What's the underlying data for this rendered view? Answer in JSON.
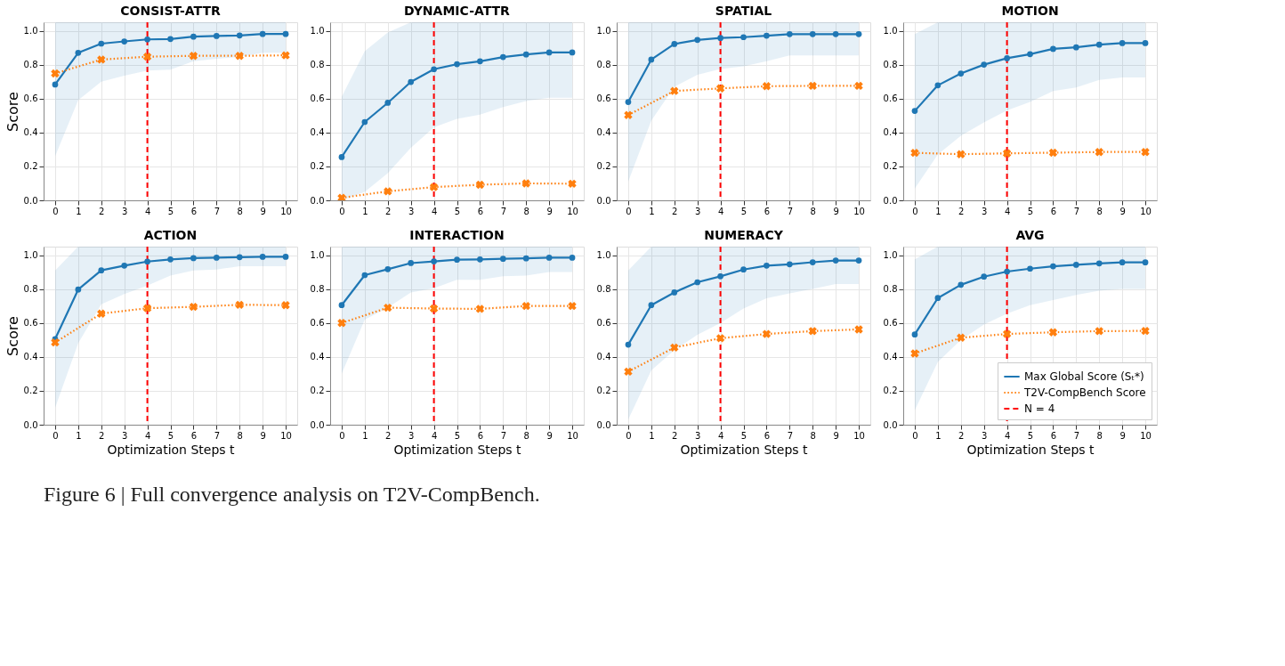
{
  "chart_data": [
    {
      "type": "line",
      "title": "CONSIST-ATTR",
      "ylabel": "Score",
      "xlim": [
        -0.5,
        10.5
      ],
      "xticks": [
        0,
        1,
        2,
        3,
        4,
        5,
        6,
        7,
        8,
        9,
        10
      ],
      "ylim": [
        0,
        1.05
      ],
      "yticks": [
        {
          "value": 0,
          "label": "0.0"
        },
        {
          "value": 0.2,
          "label": "0.2"
        },
        {
          "value": 0.4,
          "label": "0.4"
        },
        {
          "value": 0.6,
          "label": "0.6"
        },
        {
          "value": 0.8,
          "label": "0.8"
        },
        {
          "value": 1,
          "label": "1.0"
        }
      ],
      "grid": true,
      "legend": false,
      "series": [
        {
          "color": "#1f77b4",
          "marker": "circle",
          "line_style": "solid",
          "x": [
            0,
            1,
            2,
            3,
            4,
            5,
            6,
            7,
            8,
            9,
            10
          ],
          "values": [
            0.683,
            0.87,
            0.924,
            0.937,
            0.949,
            0.951,
            0.965,
            0.969,
            0.972,
            0.981,
            0.981
          ],
          "lower": [
            0.26,
            0.59,
            0.7,
            0.735,
            0.765,
            0.77,
            0.82,
            0.835,
            0.845,
            0.87,
            0.87
          ],
          "upper": [
            1.05,
            1.05,
            1.05,
            1.05,
            1.05,
            1.05,
            1.05,
            1.05,
            1.05,
            1.05,
            1.05
          ]
        },
        {
          "color": "#ff7f0e",
          "marker": "cross",
          "line_style": "dotted",
          "x": [
            0,
            2,
            4,
            6,
            8,
            10
          ],
          "values": [
            0.748,
            0.83,
            0.847,
            0.852,
            0.852,
            0.855
          ]
        }
      ],
      "ref_lines": [
        {
          "axis": "x",
          "value": 4,
          "color": "#ff0000",
          "line_style": "dashed"
        }
      ]
    },
    {
      "type": "line",
      "title": "DYNAMIC-ATTR",
      "xlim": [
        -0.5,
        10.5
      ],
      "xticks": [
        0,
        1,
        2,
        3,
        4,
        5,
        6,
        7,
        8,
        9,
        10
      ],
      "ylim": [
        0,
        1.05
      ],
      "yticks": [
        {
          "value": 0,
          "label": "0.0"
        },
        {
          "value": 0.2,
          "label": "0.2"
        },
        {
          "value": 0.4,
          "label": "0.4"
        },
        {
          "value": 0.6,
          "label": "0.6"
        },
        {
          "value": 0.8,
          "label": "0.8"
        },
        {
          "value": 1,
          "label": "1.0"
        }
      ],
      "grid": true,
      "legend": false,
      "series": [
        {
          "color": "#1f77b4",
          "marker": "circle",
          "line_style": "solid",
          "x": [
            0,
            1,
            2,
            3,
            4,
            5,
            6,
            7,
            8,
            9,
            10
          ],
          "values": [
            0.255,
            0.462,
            0.575,
            0.698,
            0.773,
            0.803,
            0.82,
            0.845,
            0.86,
            0.872,
            0.872
          ],
          "lower": [
            0.0,
            0.05,
            0.16,
            0.31,
            0.43,
            0.48,
            0.505,
            0.55,
            0.585,
            0.605,
            0.605
          ],
          "upper": [
            0.61,
            0.88,
            0.99,
            1.05,
            1.05,
            1.05,
            1.05,
            1.05,
            1.05,
            1.05,
            1.05
          ]
        },
        {
          "color": "#ff7f0e",
          "marker": "cross",
          "line_style": "dotted",
          "x": [
            0,
            2,
            4,
            6,
            8,
            10
          ],
          "values": [
            0.015,
            0.053,
            0.078,
            0.092,
            0.1,
            0.098
          ]
        }
      ],
      "ref_lines": [
        {
          "axis": "x",
          "value": 4,
          "color": "#ff0000",
          "line_style": "dashed"
        }
      ]
    },
    {
      "type": "line",
      "title": "SPATIAL",
      "xlim": [
        -0.5,
        10.5
      ],
      "xticks": [
        0,
        1,
        2,
        3,
        4,
        5,
        6,
        7,
        8,
        9,
        10
      ],
      "ylim": [
        0,
        1.05
      ],
      "yticks": [
        {
          "value": 0,
          "label": "0.0"
        },
        {
          "value": 0.2,
          "label": "0.2"
        },
        {
          "value": 0.4,
          "label": "0.4"
        },
        {
          "value": 0.6,
          "label": "0.6"
        },
        {
          "value": 0.8,
          "label": "0.8"
        },
        {
          "value": 1,
          "label": "1.0"
        }
      ],
      "grid": true,
      "legend": false,
      "series": [
        {
          "color": "#1f77b4",
          "marker": "circle",
          "line_style": "solid",
          "x": [
            0,
            1,
            2,
            3,
            4,
            5,
            6,
            7,
            8,
            9,
            10
          ],
          "values": [
            0.58,
            0.83,
            0.922,
            0.946,
            0.957,
            0.962,
            0.971,
            0.98,
            0.98,
            0.98,
            0.98
          ],
          "lower": [
            0.11,
            0.47,
            0.67,
            0.74,
            0.775,
            0.79,
            0.82,
            0.855,
            0.855,
            0.855,
            0.855
          ],
          "upper": [
            1.05,
            1.05,
            1.05,
            1.05,
            1.05,
            1.05,
            1.05,
            1.05,
            1.05,
            1.05,
            1.05
          ]
        },
        {
          "color": "#ff7f0e",
          "marker": "cross",
          "line_style": "dotted",
          "x": [
            0,
            2,
            4,
            6,
            8,
            10
          ],
          "values": [
            0.503,
            0.645,
            0.66,
            0.673,
            0.675,
            0.675
          ]
        }
      ],
      "ref_lines": [
        {
          "axis": "x",
          "value": 4,
          "color": "#ff0000",
          "line_style": "dashed"
        }
      ]
    },
    {
      "type": "line",
      "title": "MOTION",
      "xlim": [
        -0.5,
        10.5
      ],
      "xticks": [
        0,
        1,
        2,
        3,
        4,
        5,
        6,
        7,
        8,
        9,
        10
      ],
      "ylim": [
        0,
        1.05
      ],
      "yticks": [
        {
          "value": 0,
          "label": "0.0"
        },
        {
          "value": 0.2,
          "label": "0.2"
        },
        {
          "value": 0.4,
          "label": "0.4"
        },
        {
          "value": 0.6,
          "label": "0.6"
        },
        {
          "value": 0.8,
          "label": "0.8"
        },
        {
          "value": 1,
          "label": "1.0"
        }
      ],
      "grid": true,
      "legend": false,
      "series": [
        {
          "color": "#1f77b4",
          "marker": "circle",
          "line_style": "solid",
          "x": [
            0,
            1,
            2,
            3,
            4,
            5,
            6,
            7,
            8,
            9,
            10
          ],
          "values": [
            0.527,
            0.678,
            0.748,
            0.8,
            0.838,
            0.862,
            0.893,
            0.902,
            0.918,
            0.927,
            0.927
          ],
          "lower": [
            0.07,
            0.27,
            0.38,
            0.46,
            0.53,
            0.58,
            0.645,
            0.665,
            0.71,
            0.725,
            0.725
          ],
          "upper": [
            0.98,
            1.05,
            1.05,
            1.05,
            1.05,
            1.05,
            1.05,
            1.05,
            1.05,
            1.05,
            1.05
          ]
        },
        {
          "color": "#ff7f0e",
          "marker": "cross",
          "line_style": "dotted",
          "x": [
            0,
            2,
            4,
            6,
            8,
            10
          ],
          "values": [
            0.28,
            0.272,
            0.277,
            0.281,
            0.285,
            0.285
          ]
        }
      ],
      "ref_lines": [
        {
          "axis": "x",
          "value": 4,
          "color": "#ff0000",
          "line_style": "dashed"
        }
      ]
    },
    {
      "type": "line",
      "title": "ACTION",
      "xlabel": "Optimization Steps t",
      "ylabel": "Score",
      "xlim": [
        -0.5,
        10.5
      ],
      "xticks": [
        0,
        1,
        2,
        3,
        4,
        5,
        6,
        7,
        8,
        9,
        10
      ],
      "ylim": [
        0,
        1.05
      ],
      "yticks": [
        {
          "value": 0,
          "label": "0.0"
        },
        {
          "value": 0.2,
          "label": "0.2"
        },
        {
          "value": 0.4,
          "label": "0.4"
        },
        {
          "value": 0.6,
          "label": "0.6"
        },
        {
          "value": 0.8,
          "label": "0.8"
        },
        {
          "value": 1,
          "label": "1.0"
        }
      ],
      "grid": true,
      "legend": false,
      "series": [
        {
          "color": "#1f77b4",
          "marker": "circle",
          "line_style": "solid",
          "x": [
            0,
            1,
            2,
            3,
            4,
            5,
            6,
            7,
            8,
            9,
            10
          ],
          "values": [
            0.505,
            0.797,
            0.91,
            0.938,
            0.962,
            0.975,
            0.982,
            0.985,
            0.988,
            0.99,
            0.99
          ],
          "lower": [
            0.1,
            0.48,
            0.71,
            0.77,
            0.82,
            0.88,
            0.91,
            0.915,
            0.935,
            0.935,
            0.935
          ],
          "upper": [
            0.91,
            1.05,
            1.05,
            1.05,
            1.05,
            1.05,
            1.05,
            1.05,
            1.05,
            1.05,
            1.05
          ]
        },
        {
          "color": "#ff7f0e",
          "marker": "cross",
          "line_style": "dotted",
          "x": [
            0,
            2,
            4,
            6,
            8,
            10
          ],
          "values": [
            0.485,
            0.655,
            0.687,
            0.695,
            0.707,
            0.705
          ]
        }
      ],
      "ref_lines": [
        {
          "axis": "x",
          "value": 4,
          "color": "#ff0000",
          "line_style": "dashed"
        }
      ]
    },
    {
      "type": "line",
      "title": "INTERACTION",
      "xlabel": "Optimization Steps t",
      "xlim": [
        -0.5,
        10.5
      ],
      "xticks": [
        0,
        1,
        2,
        3,
        4,
        5,
        6,
        7,
        8,
        9,
        10
      ],
      "ylim": [
        0,
        1.05
      ],
      "yticks": [
        {
          "value": 0,
          "label": "0.0"
        },
        {
          "value": 0.2,
          "label": "0.2"
        },
        {
          "value": 0.4,
          "label": "0.4"
        },
        {
          "value": 0.6,
          "label": "0.6"
        },
        {
          "value": 0.8,
          "label": "0.8"
        },
        {
          "value": 1,
          "label": "1.0"
        }
      ],
      "grid": true,
      "legend": false,
      "series": [
        {
          "color": "#1f77b4",
          "marker": "circle",
          "line_style": "solid",
          "x": [
            0,
            1,
            2,
            3,
            4,
            5,
            6,
            7,
            8,
            9,
            10
          ],
          "values": [
            0.705,
            0.882,
            0.917,
            0.953,
            0.963,
            0.973,
            0.975,
            0.978,
            0.981,
            0.985,
            0.985
          ],
          "lower": [
            0.3,
            0.62,
            0.69,
            0.78,
            0.805,
            0.855,
            0.855,
            0.875,
            0.88,
            0.9,
            0.9
          ],
          "upper": [
            1.05,
            1.05,
            1.05,
            1.05,
            1.05,
            1.05,
            1.05,
            1.05,
            1.05,
            1.05,
            1.05
          ]
        },
        {
          "color": "#ff7f0e",
          "marker": "cross",
          "line_style": "dotted",
          "x": [
            0,
            2,
            4,
            6,
            8,
            10
          ],
          "values": [
            0.6,
            0.69,
            0.685,
            0.683,
            0.7,
            0.7
          ]
        }
      ],
      "ref_lines": [
        {
          "axis": "x",
          "value": 4,
          "color": "#ff0000",
          "line_style": "dashed"
        }
      ]
    },
    {
      "type": "line",
      "title": "NUMERACY",
      "xlabel": "Optimization Steps t",
      "xlim": [
        -0.5,
        10.5
      ],
      "xticks": [
        0,
        1,
        2,
        3,
        4,
        5,
        6,
        7,
        8,
        9,
        10
      ],
      "ylim": [
        0,
        1.05
      ],
      "yticks": [
        {
          "value": 0,
          "label": "0.0"
        },
        {
          "value": 0.2,
          "label": "0.2"
        },
        {
          "value": 0.4,
          "label": "0.4"
        },
        {
          "value": 0.6,
          "label": "0.6"
        },
        {
          "value": 0.8,
          "label": "0.8"
        },
        {
          "value": 1,
          "label": "1.0"
        }
      ],
      "grid": true,
      "legend": false,
      "series": [
        {
          "color": "#1f77b4",
          "marker": "circle",
          "line_style": "solid",
          "x": [
            0,
            1,
            2,
            3,
            4,
            5,
            6,
            7,
            8,
            9,
            10
          ],
          "values": [
            0.472,
            0.705,
            0.78,
            0.84,
            0.875,
            0.915,
            0.938,
            0.946,
            0.958,
            0.968,
            0.968
          ],
          "lower": [
            0.03,
            0.32,
            0.44,
            0.53,
            0.6,
            0.685,
            0.745,
            0.775,
            0.8,
            0.83,
            0.83
          ],
          "upper": [
            0.91,
            1.05,
            1.05,
            1.05,
            1.05,
            1.05,
            1.05,
            1.05,
            1.05,
            1.05,
            1.05
          ]
        },
        {
          "color": "#ff7f0e",
          "marker": "cross",
          "line_style": "dotted",
          "x": [
            0,
            2,
            4,
            6,
            8,
            10
          ],
          "values": [
            0.313,
            0.455,
            0.51,
            0.535,
            0.552,
            0.562
          ]
        }
      ],
      "ref_lines": [
        {
          "axis": "x",
          "value": 4,
          "color": "#ff0000",
          "line_style": "dashed"
        }
      ]
    },
    {
      "type": "line",
      "title": "AVG",
      "xlabel": "Optimization Steps t",
      "xlim": [
        -0.5,
        10.5
      ],
      "xticks": [
        0,
        1,
        2,
        3,
        4,
        5,
        6,
        7,
        8,
        9,
        10
      ],
      "ylim": [
        0,
        1.05
      ],
      "yticks": [
        {
          "value": 0,
          "label": "0.0"
        },
        {
          "value": 0.2,
          "label": "0.2"
        },
        {
          "value": 0.4,
          "label": "0.4"
        },
        {
          "value": 0.6,
          "label": "0.6"
        },
        {
          "value": 0.8,
          "label": "0.8"
        },
        {
          "value": 1,
          "label": "1.0"
        }
      ],
      "grid": true,
      "legend": "bottom right",
      "series": [
        {
          "name": "Max Global Score (Sₜ*)",
          "color": "#1f77b4",
          "marker": "circle",
          "line_style": "solid",
          "x": [
            0,
            1,
            2,
            3,
            4,
            5,
            6,
            7,
            8,
            9,
            10
          ],
          "values": [
            0.532,
            0.747,
            0.825,
            0.873,
            0.903,
            0.92,
            0.934,
            0.943,
            0.951,
            0.957,
            0.957
          ],
          "lower": [
            0.085,
            0.37,
            0.5,
            0.59,
            0.655,
            0.705,
            0.735,
            0.765,
            0.79,
            0.8,
            0.8
          ],
          "upper": [
            0.975,
            1.05,
            1.05,
            1.05,
            1.05,
            1.05,
            1.05,
            1.05,
            1.05,
            1.05,
            1.05
          ]
        },
        {
          "name": "T2V-CompBench Score",
          "color": "#ff7f0e",
          "marker": "cross",
          "line_style": "dotted",
          "x": [
            0,
            2,
            4,
            6,
            8,
            10
          ],
          "values": [
            0.42,
            0.513,
            0.535,
            0.545,
            0.552,
            0.553
          ]
        }
      ],
      "ref_lines": [
        {
          "axis": "x",
          "value": 4,
          "label": "N = 4",
          "color": "#ff0000",
          "line_style": "dashed"
        }
      ],
      "annotations": [
        "Figure 6 | Full convergence analysis on T2V-CompBench."
      ]
    }
  ]
}
